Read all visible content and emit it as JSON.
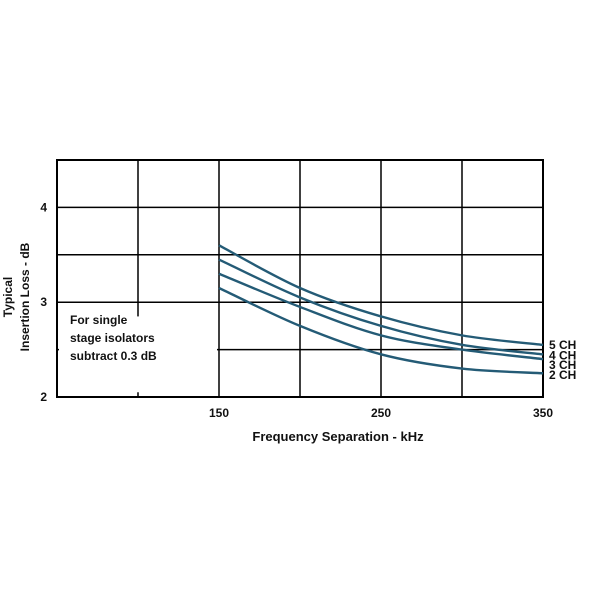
{
  "chart_data": {
    "type": "line",
    "xlabel": "Frequency Separation - kHz",
    "ylabel": [
      "Typical",
      "Insertion Loss - dB"
    ],
    "x_ticks": [
      150,
      250,
      350
    ],
    "y_ticks": [
      2,
      3,
      4
    ],
    "xlim": [
      50,
      350
    ],
    "ylim": [
      2,
      4.5
    ],
    "grid": true,
    "note": [
      "For single",
      "stage isolators",
      "subtract 0.3 dB"
    ],
    "series": [
      {
        "name": "5 CH",
        "x": [
          150,
          200,
          250,
          300,
          350
        ],
        "y": [
          3.6,
          3.15,
          2.85,
          2.65,
          2.55
        ]
      },
      {
        "name": "4 CH",
        "x": [
          150,
          200,
          250,
          300,
          350
        ],
        "y": [
          3.45,
          3.05,
          2.75,
          2.55,
          2.45
        ]
      },
      {
        "name": "3 CH",
        "x": [
          150,
          200,
          250,
          300,
          350
        ],
        "y": [
          3.3,
          2.95,
          2.65,
          2.5,
          2.4
        ]
      },
      {
        "name": "2 CH",
        "x": [
          150,
          200,
          250,
          300,
          350
        ],
        "y": [
          3.15,
          2.75,
          2.45,
          2.3,
          2.25
        ]
      }
    ],
    "colors": {
      "series": "#245b76",
      "grid": "#000000"
    }
  }
}
